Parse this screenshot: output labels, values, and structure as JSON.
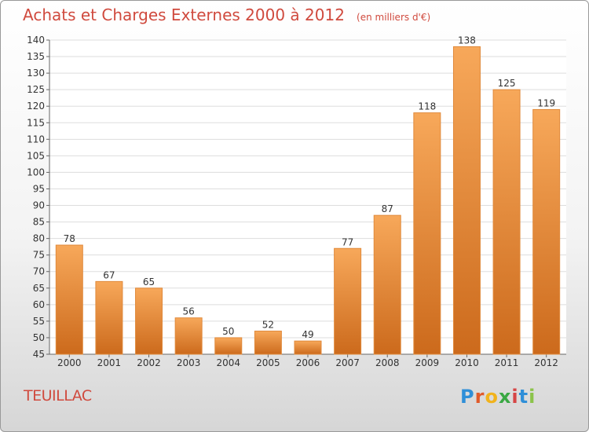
{
  "header": {
    "title": "Achats et Charges Externes 2000 à 2012",
    "unit": "(en milliers d'€)"
  },
  "footer": {
    "place": "TEUILLAC",
    "logo": "Proxiti"
  },
  "colors": {
    "title": "#d04a3e",
    "bar_light": "#f7a85a",
    "bar_dark": "#cc6a1c",
    "grid": "#dddddd"
  },
  "chart_data": {
    "type": "bar",
    "title": "Achats et Charges Externes 2000 à 2012",
    "subtitle": "(en milliers d'€)",
    "categories": [
      "2000",
      "2001",
      "2002",
      "2003",
      "2004",
      "2005",
      "2006",
      "2007",
      "2008",
      "2009",
      "2010",
      "2011",
      "2012"
    ],
    "values": [
      78,
      67,
      65,
      56,
      50,
      52,
      49,
      77,
      87,
      118,
      138,
      125,
      119
    ],
    "ylim": [
      45,
      140
    ],
    "yticks": [
      45,
      50,
      55,
      60,
      65,
      70,
      75,
      80,
      85,
      90,
      95,
      100,
      105,
      110,
      115,
      120,
      125,
      130,
      135,
      140
    ],
    "grid": true,
    "xlabel": "",
    "ylabel": ""
  }
}
